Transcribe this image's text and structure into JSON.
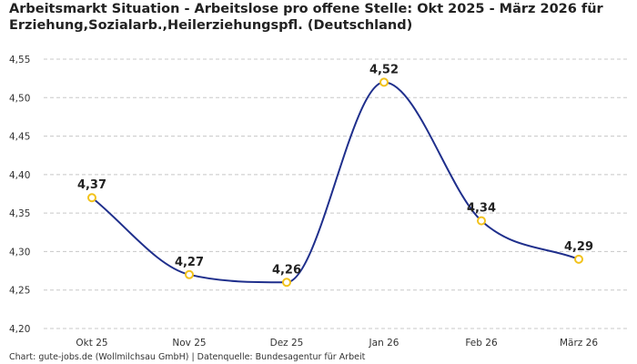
{
  "chart_data": {
    "type": "line",
    "title": "Arbeitsmarkt Situation - Arbeitslose pro offene Stelle: Okt 2025 - März 2026 für Erziehung,Sozialarb.,Heilerziehungspfl. (Deutschland)",
    "xlabel": "",
    "ylabel": "",
    "categories": [
      "Okt 25",
      "Nov 25",
      "Dez 25",
      "Jan 26",
      "Feb 26",
      "März 26"
    ],
    "values": [
      4.37,
      4.27,
      4.26,
      4.52,
      4.34,
      4.29
    ],
    "data_labels": [
      "4,37",
      "4,27",
      "4,26",
      "4,52",
      "4,34",
      "4,29"
    ],
    "ylim": [
      4.2,
      4.55
    ],
    "y_ticks": [
      {
        "value": 4.2,
        "label": "4,20"
      },
      {
        "value": 4.25,
        "label": "4,25"
      },
      {
        "value": 4.3,
        "label": "4,30"
      },
      {
        "value": 4.35,
        "label": "4,35"
      },
      {
        "value": 4.4,
        "label": "4,40"
      },
      {
        "value": 4.45,
        "label": "4,45"
      },
      {
        "value": 4.5,
        "label": "4,50"
      },
      {
        "value": 4.55,
        "label": "4,55"
      }
    ],
    "grid": "horizontal-dashed",
    "curve": "smooth",
    "colors": {
      "line": "#1f2f8c",
      "marker_stroke": "#f2c21b",
      "marker_fill": "#ffffff",
      "grid": "#c8c8c8"
    },
    "source": "Chart: gute-jobs.de (Wollmilchsau GmbH) | Datenquelle: Bundesagentur für Arbeit"
  }
}
